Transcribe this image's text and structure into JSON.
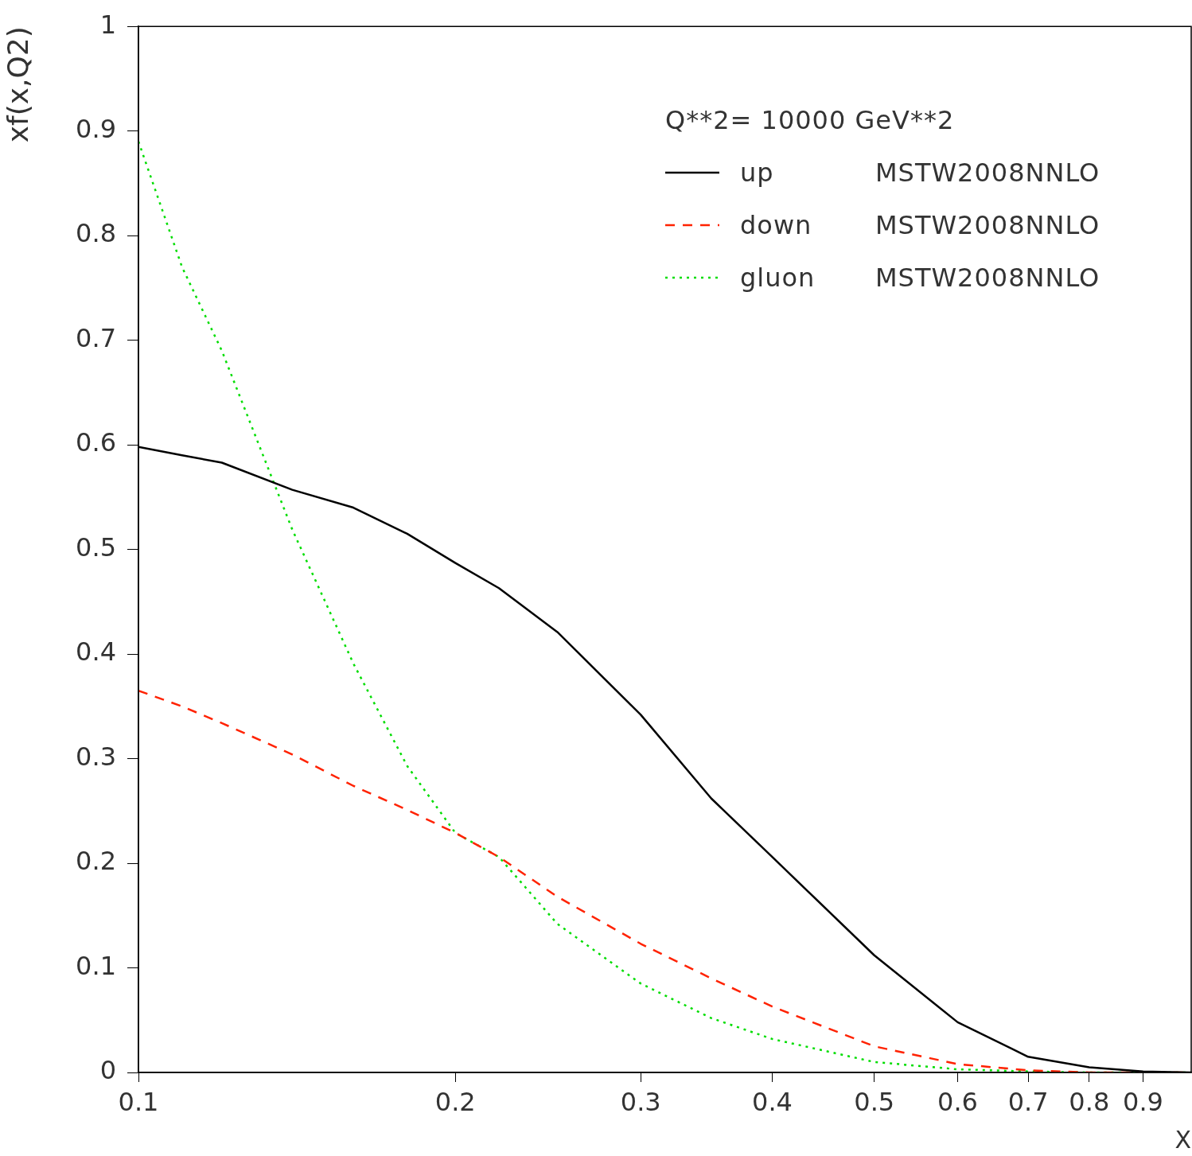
{
  "chart_data": {
    "type": "line",
    "xlabel": "X",
    "ylabel": "xf(x,Q2)",
    "legend_title": "Q**2=    10000    GeV**2",
    "annotations": [
      "MSTW2008NNLO",
      "MSTW2008NNLO",
      "MSTW2008NNLO"
    ],
    "log": "x",
    "xlim": [
      0.1,
      1
    ],
    "ylim": [
      0,
      1
    ],
    "xticks": [
      0.1,
      0.2,
      0.3,
      0.4,
      0.5,
      0.6,
      0.7,
      0.8,
      0.9
    ],
    "yticks": [
      0,
      0.1,
      0.2,
      0.3,
      0.4,
      0.5,
      0.6,
      0.7,
      0.8,
      0.9,
      1
    ],
    "grid": false,
    "legend": "top right",
    "marker": "none",
    "x": [
      0.1,
      0.11,
      0.12,
      0.14,
      0.16,
      0.18,
      0.2,
      0.22,
      0.25,
      0.3,
      0.35,
      0.4,
      0.5,
      0.6,
      0.7,
      0.8,
      0.9,
      1
    ],
    "series": [
      {
        "name": "up",
        "color": "#000000",
        "line_style": "solid",
        "values": [
          0.598,
          0.59,
          0.583,
          0.557,
          0.54,
          0.515,
          0.487,
          0.463,
          0.421,
          0.342,
          0.262,
          0.206,
          0.112,
          0.048,
          0.015,
          0.005,
          0.001,
          0
        ]
      },
      {
        "name": "down",
        "color": "#ff2200",
        "line_style": "dashed",
        "values": [
          0.365,
          0.35,
          0.334,
          0.304,
          0.274,
          0.251,
          0.229,
          0.206,
          0.168,
          0.123,
          0.09,
          0.063,
          0.025,
          0.008,
          0.002,
          0,
          0,
          0
        ]
      },
      {
        "name": "gluon",
        "color": "#00dd00",
        "line_style": "dotted",
        "values": [
          0.89,
          0.77,
          0.69,
          0.519,
          0.391,
          0.293,
          0.229,
          0.206,
          0.142,
          0.085,
          0.052,
          0.032,
          0.01,
          0.003,
          0.001,
          0,
          0,
          0
        ]
      }
    ]
  }
}
